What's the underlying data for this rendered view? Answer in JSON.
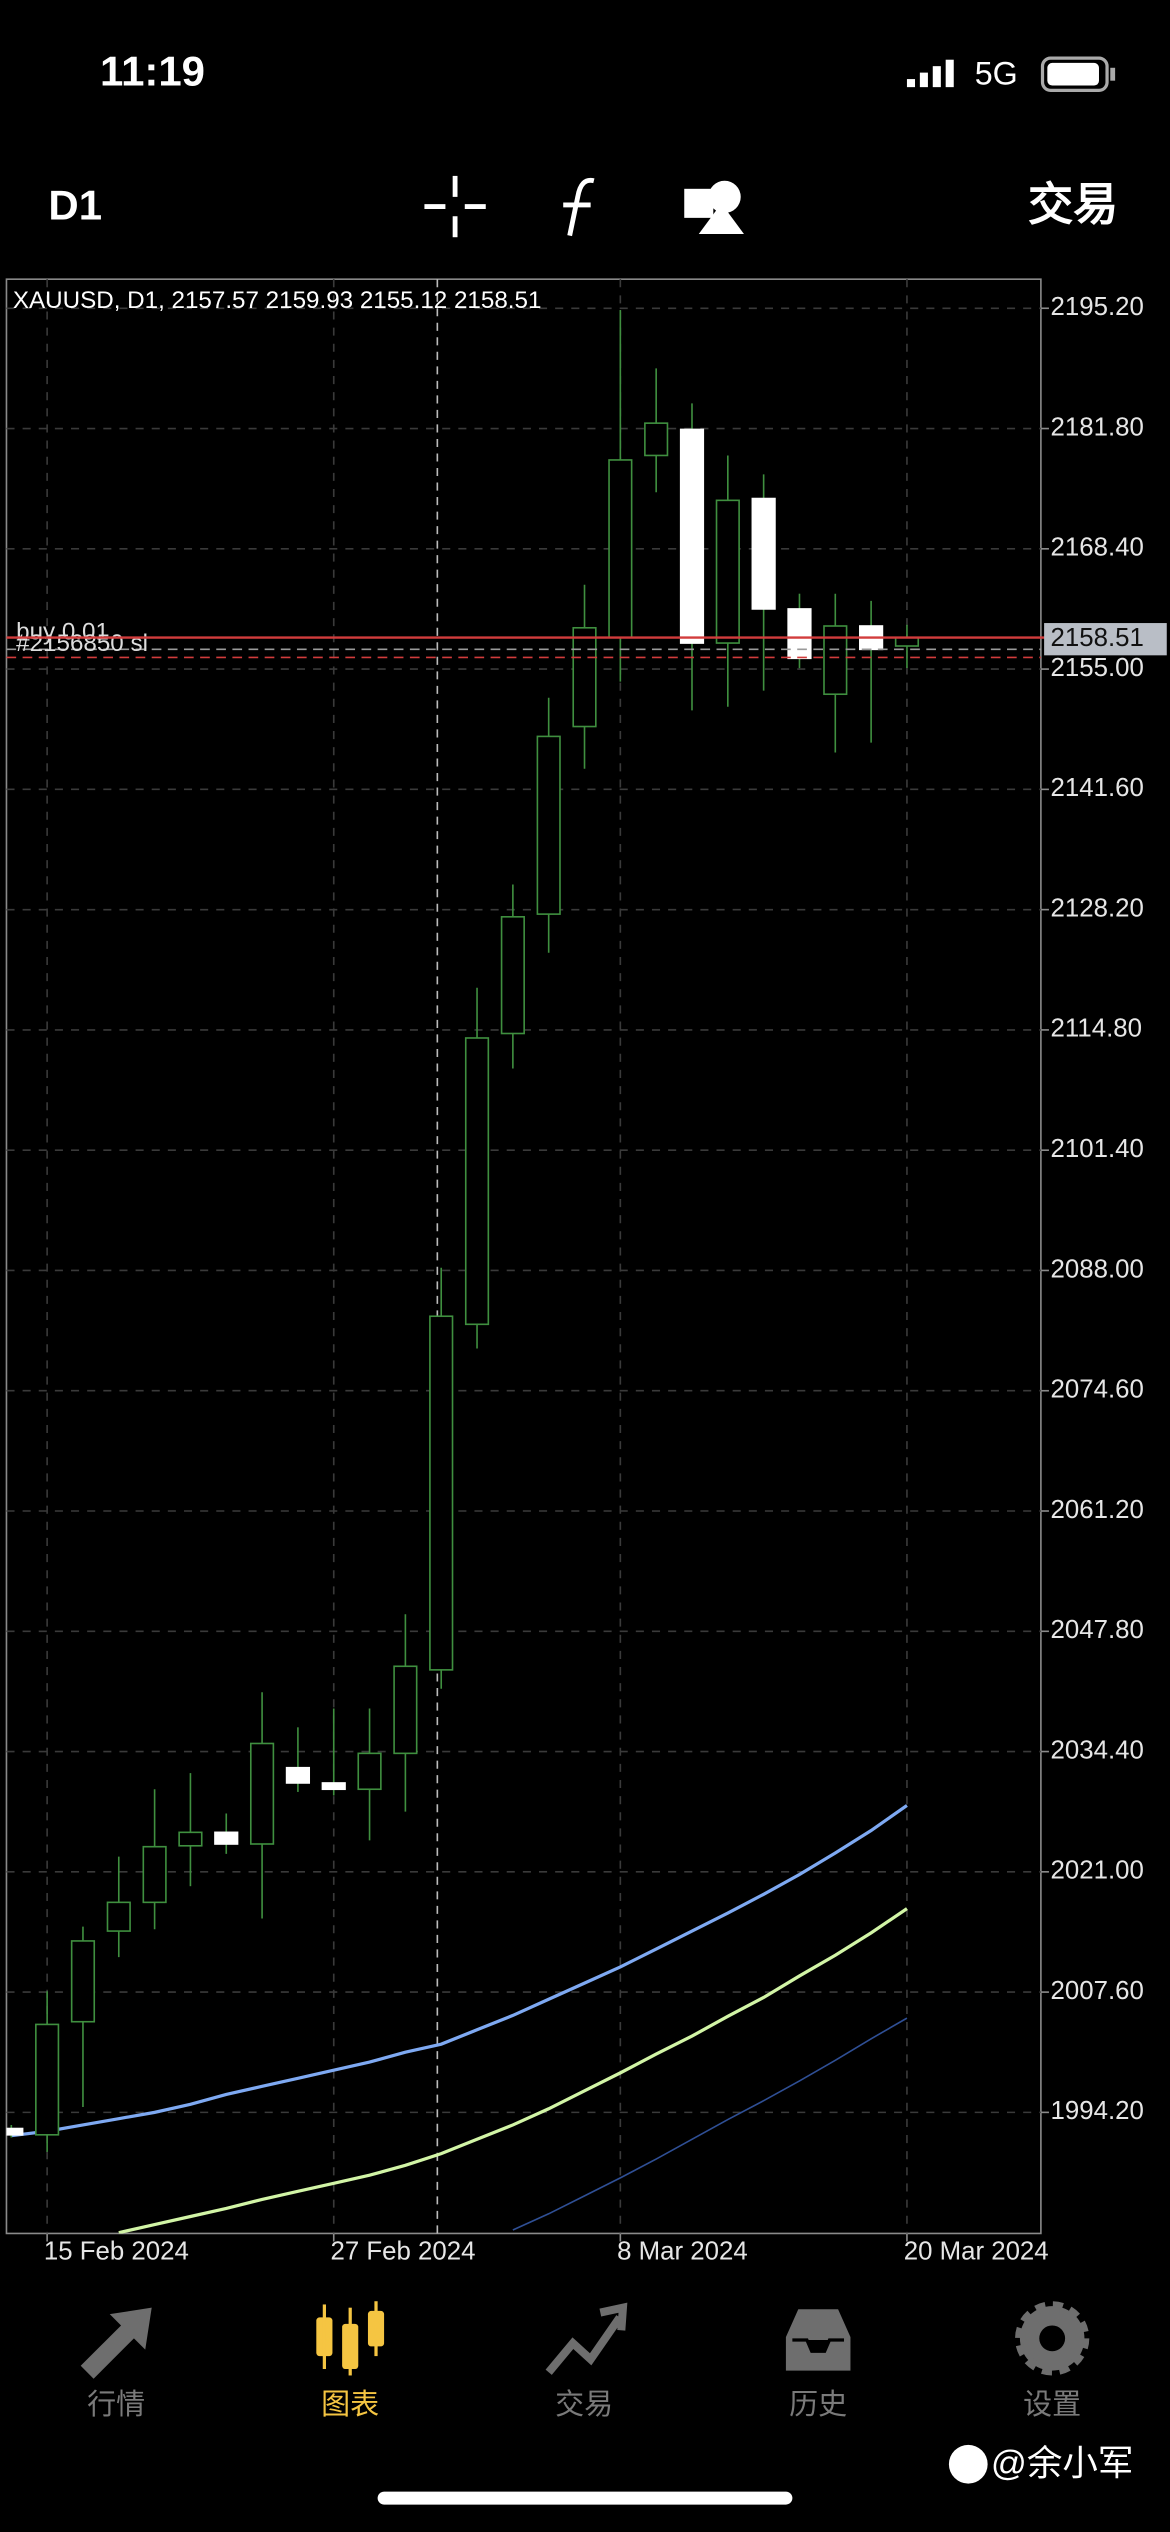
{
  "status_bar": {
    "time": "11:19",
    "network": "5G"
  },
  "toolbar": {
    "timeframe": "D1",
    "action": "交易"
  },
  "chart_data": {
    "type": "candlestick",
    "title": "XAUUSD, D1, 2157.57 2159.93 2155.12 2158.51",
    "categories": [
      null,
      "15 Feb 2024",
      null,
      null,
      null,
      null,
      null,
      null,
      null,
      "27 Feb 2024",
      null,
      null,
      null,
      null,
      null,
      null,
      null,
      "8 Mar 2024",
      null,
      null,
      null,
      null,
      null,
      null,
      null,
      "20 Mar 2024"
    ],
    "open": [
      1992.4,
      1991.7,
      2004.3,
      2014.4,
      2017.6,
      2023.9,
      2025.4,
      2024.1,
      2032.6,
      2030.9,
      2030.2,
      2034.2,
      2043.5,
      2082.0,
      2114.4,
      2127.7,
      2148.6,
      2158.5,
      2178.8,
      2181.7,
      2157.9,
      2174.0,
      2161.7,
      2152.2,
      2159.8,
      2157.57
    ],
    "high": [
      1992.8,
      2007.7,
      2014.9,
      2022.7,
      2030.2,
      2032.0,
      2027.5,
      2041.0,
      2037.1,
      2039.2,
      2039.2,
      2049.7,
      2088.3,
      2119.5,
      2131.0,
      2151.8,
      2164.4,
      2195.0,
      2188.5,
      2184.6,
      2178.8,
      2176.7,
      2163.4,
      2163.4,
      2162.6,
      2159.93
    ],
    "low": [
      1991.4,
      1989.8,
      1994.8,
      2011.5,
      2014.6,
      2019.4,
      2023.0,
      2015.8,
      2029.9,
      2029.5,
      2024.5,
      2027.7,
      2041.4,
      2079.3,
      2110.5,
      2123.4,
      2143.9,
      2153.6,
      2174.7,
      2150.4,
      2150.8,
      2152.6,
      2155.1,
      2145.7,
      2146.8,
      2155.12
    ],
    "close": [
      1991.7,
      2004.0,
      2013.3,
      2017.6,
      2023.8,
      2025.4,
      2024.1,
      2035.3,
      2030.9,
      2030.2,
      2034.2,
      2043.9,
      2082.9,
      2113.9,
      2127.4,
      2147.5,
      2159.6,
      2178.3,
      2182.4,
      2157.9,
      2173.8,
      2161.7,
      2156.2,
      2159.8,
      2157.2,
      2158.51
    ],
    "up_color": "#3f8f3f",
    "down_color": "#ffffff",
    "series": [
      {
        "color": "#7ea9f2",
        "values": [
          1991.6,
          1992.1,
          1992.8,
          1993.5,
          1994.2,
          1995.1,
          1996.2,
          1997.1,
          1998.0,
          1998.9,
          1999.8,
          2000.9,
          2001.8,
          2003.4,
          2005.0,
          2006.8,
          2008.6,
          2010.4,
          2012.4,
          2014.4,
          2016.4,
          2018.5,
          2020.7,
          2023.1,
          2025.6,
          2028.4
        ]
      },
      {
        "color": "#d2f5a6",
        "values": [
          null,
          null,
          null,
          1980.8,
          1981.7,
          1982.6,
          1983.5,
          1984.5,
          1985.4,
          1986.3,
          1987.2,
          1988.3,
          1989.6,
          1991.2,
          1992.8,
          1994.6,
          1996.6,
          1998.6,
          2000.7,
          2002.7,
          2004.9,
          2007.0,
          2009.4,
          2011.7,
          2014.2,
          2016.9
        ]
      },
      {
        "color": "#2f4f95",
        "values": [
          null,
          null,
          null,
          null,
          null,
          null,
          null,
          null,
          null,
          null,
          null,
          null,
          null,
          null,
          1981.1,
          1982.9,
          1984.9,
          1986.9,
          1989.0,
          1991.2,
          1993.4,
          1995.5,
          1997.7,
          2000.0,
          2002.4,
          2004.7
        ]
      }
    ],
    "ylim": [
      1980.71,
      2198.44
    ],
    "yticks": [
      {
        "value": 1994.2,
        "label": "1994.20"
      },
      {
        "value": 2007.6,
        "label": "2007.60"
      },
      {
        "value": 2021.0,
        "label": "2021.00"
      },
      {
        "value": 2034.4,
        "label": "2034.40"
      },
      {
        "value": 2047.8,
        "label": "2047.80"
      },
      {
        "value": 2061.2,
        "label": "2061.20"
      },
      {
        "value": 2074.6,
        "label": "2074.60"
      },
      {
        "value": 2088.0,
        "label": "2088.00"
      },
      {
        "value": 2101.4,
        "label": "2101.40"
      },
      {
        "value": 2114.8,
        "label": "2114.80"
      },
      {
        "value": 2128.2,
        "label": "2128.20"
      },
      {
        "value": 2141.6,
        "label": "2141.60"
      },
      {
        "value": 2155.0,
        "label": "2155.00"
      },
      {
        "value": 2168.4,
        "label": "2168.40"
      },
      {
        "value": 2181.8,
        "label": "2181.80"
      },
      {
        "value": 2195.2,
        "label": "2195.20"
      }
    ],
    "grid": true,
    "last_price": 2158.51,
    "orders": [
      {
        "label": "buy 0.01",
        "price": 2157.2,
        "color": "#9a9a9a"
      },
      {
        "label": "#2156850 sl",
        "price": 2156.3,
        "color": "#d23c3c"
      }
    ]
  },
  "tabs": [
    {
      "label": "行情"
    },
    {
      "label": "图表"
    },
    {
      "label": "交易"
    },
    {
      "label": "历史"
    },
    {
      "label": "设置"
    }
  ],
  "active_tab": 1,
  "watermark": "@余小军"
}
